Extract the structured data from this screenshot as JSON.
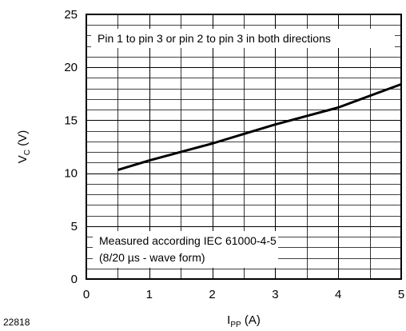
{
  "figure_id": "22818",
  "chart_data": {
    "type": "line",
    "xlabel": {
      "main": "I",
      "sub": "PP",
      "unit": " (A)"
    },
    "ylabel": {
      "main": "V",
      "sub": "C",
      "unit": " (V)"
    },
    "xlim": [
      0,
      5
    ],
    "ylim": [
      0,
      25
    ],
    "x_ticks": [
      0,
      1,
      2,
      3,
      4,
      5
    ],
    "y_ticks": [
      0,
      5,
      10,
      15,
      20,
      25
    ],
    "x_minor_step": 0.5,
    "y_minor_step": 1,
    "grid": true,
    "series": [
      {
        "x": [
          0.5,
          1,
          1.5,
          2,
          2.5,
          3,
          3.5,
          4,
          4.5,
          5
        ],
        "y": [
          10.3,
          11.2,
          12.0,
          12.8,
          13.7,
          14.6,
          15.4,
          16.2,
          17.3,
          18.4
        ]
      }
    ],
    "annotations": [
      {
        "id": "top-note",
        "lines": [
          "Pin 1 to pin 3 or pin 2 to pin 3 in both directions"
        ]
      },
      {
        "id": "bottom-note",
        "lines": [
          "Measured according IEC 61000-4-5",
          "(8/20 µs - wave form)"
        ]
      }
    ]
  }
}
